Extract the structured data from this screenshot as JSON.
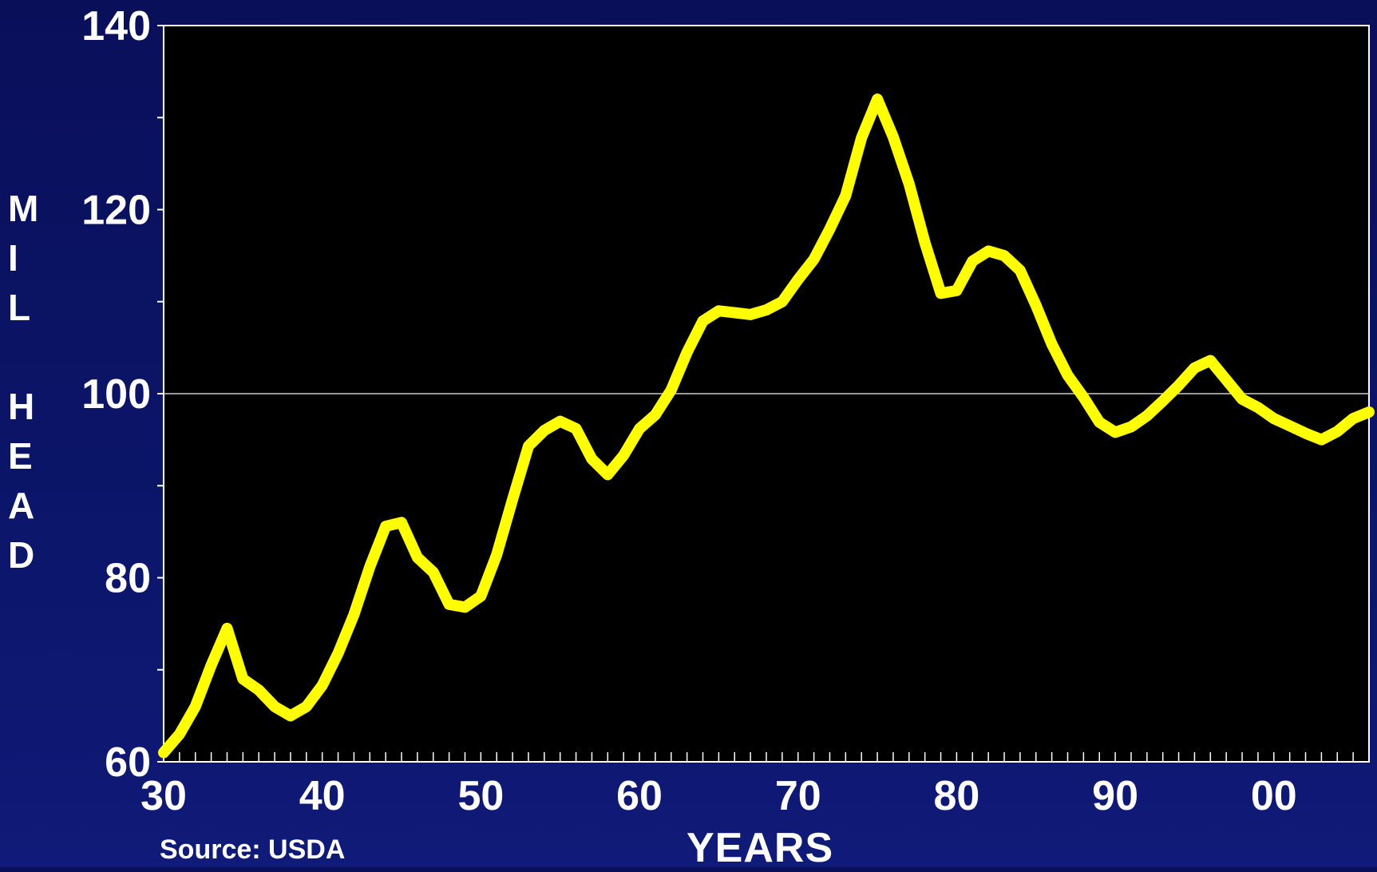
{
  "chart_data": {
    "type": "line",
    "title": "",
    "xlabel": "YEARS",
    "ylabel": "MIL HEAD",
    "source": "Source: USDA",
    "x_tick_labels": [
      "30",
      "40",
      "50",
      "60",
      "70",
      "80",
      "90",
      "00"
    ],
    "y_tick_labels": [
      "60",
      "80",
      "100",
      "120",
      "140"
    ],
    "ylim": [
      60,
      140
    ],
    "xlim": [
      1930,
      2006
    ],
    "grid": "single horizontal line at 100",
    "colors": {
      "line": "#ffff00",
      "plot_background": "#000000",
      "page_background": "#0b1568",
      "text": "#ffffff"
    },
    "series": [
      {
        "x": [
          1930,
          1931,
          1932,
          1933,
          1934,
          1935,
          1936,
          1937,
          1938,
          1939,
          1940,
          1941,
          1942,
          1943,
          1944,
          1945,
          1946,
          1947,
          1948,
          1949,
          1950,
          1951,
          1952,
          1953,
          1954,
          1955,
          1956,
          1957,
          1958,
          1959,
          1960,
          1961,
          1962,
          1963,
          1964,
          1965,
          1966,
          1967,
          1968,
          1969,
          1970,
          1971,
          1972,
          1973,
          1974,
          1975,
          1976,
          1977,
          1978,
          1979,
          1980,
          1981,
          1982,
          1983,
          1984,
          1985,
          1986,
          1987,
          1988,
          1989,
          1990,
          1991,
          1992,
          1993,
          1994,
          1995,
          1996,
          1997,
          1998,
          1999,
          2000,
          2001,
          2002,
          2003,
          2004,
          2005,
          2006
        ],
        "values": [
          61.0,
          63.0,
          66.0,
          70.5,
          74.5,
          69.0,
          67.8,
          66.0,
          65.0,
          66.0,
          68.3,
          71.8,
          76.0,
          81.2,
          85.6,
          86.0,
          82.2,
          80.6,
          77.1,
          76.8,
          78.0,
          82.5,
          88.5,
          94.3,
          96.0,
          97.0,
          96.2,
          92.9,
          91.2,
          93.3,
          96.2,
          97.7,
          100.4,
          104.5,
          107.9,
          109.0,
          108.8,
          108.6,
          109.1,
          110.0,
          112.4,
          114.6,
          117.9,
          121.5,
          127.8,
          132.0,
          127.9,
          122.8,
          116.4,
          110.9,
          111.2,
          114.4,
          115.5,
          115.0,
          113.4,
          109.6,
          105.4,
          102.0,
          99.6,
          96.9,
          95.8,
          96.4,
          97.6,
          99.2,
          100.9,
          102.8,
          103.6,
          101.5,
          99.4,
          98.5,
          97.3,
          96.5,
          95.7,
          95.0,
          95.9,
          97.3,
          98.0
        ]
      }
    ]
  }
}
